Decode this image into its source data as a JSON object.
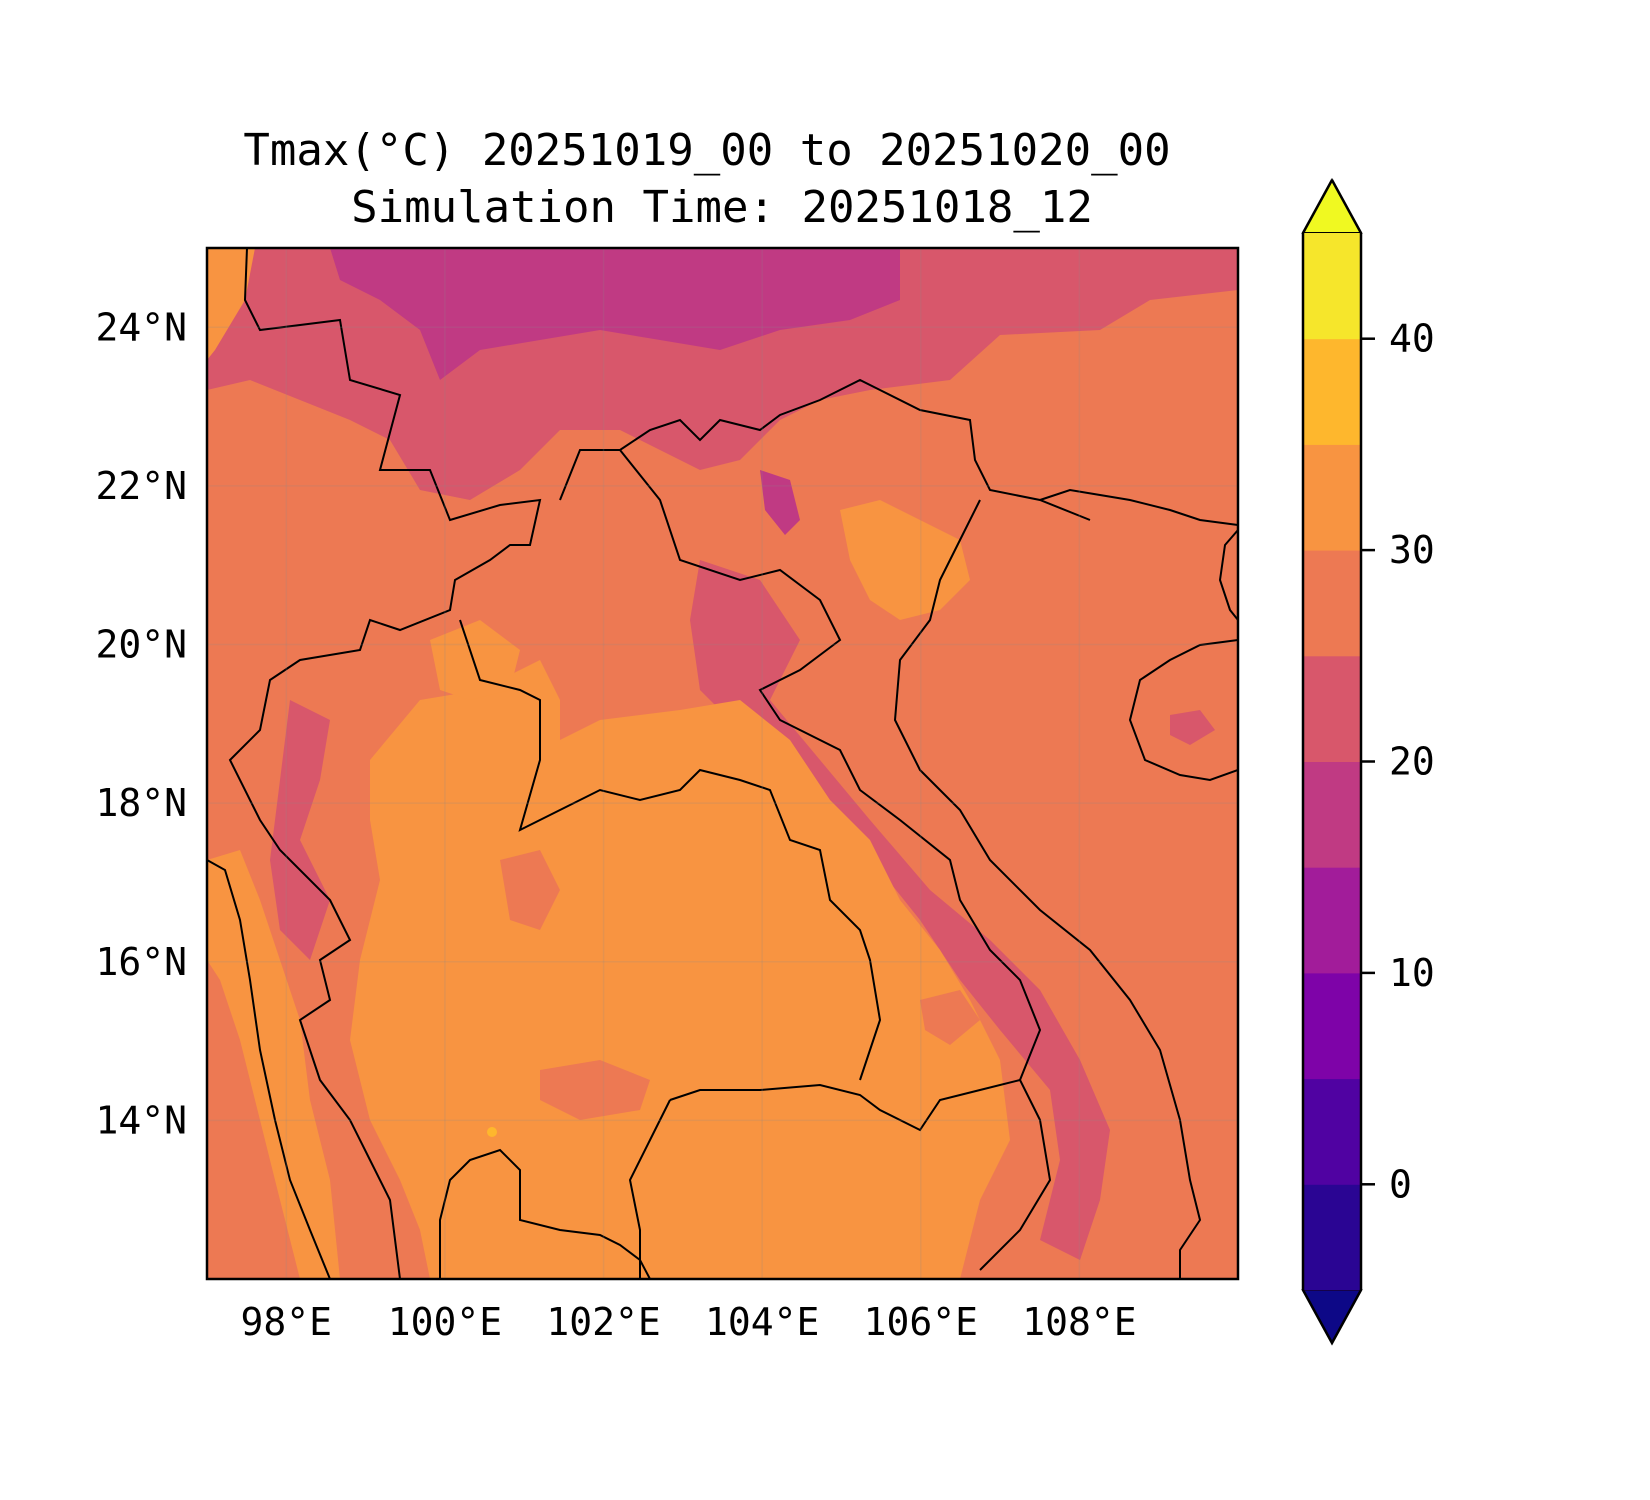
{
  "chart_data": {
    "type": "heatmap",
    "title_line1": "Tmax(°C) 20251019_00 to 20251020_00",
    "title_line2": "Simulation Time: 20251018_12",
    "x_ticks": [
      {
        "value": 98,
        "label": "98°E"
      },
      {
        "value": 100,
        "label": "100°E"
      },
      {
        "value": 102,
        "label": "102°E"
      },
      {
        "value": 104,
        "label": "104°E"
      },
      {
        "value": 106,
        "label": "106°E"
      },
      {
        "value": 108,
        "label": "108°E"
      }
    ],
    "y_ticks": [
      {
        "value": 24,
        "label": "24°N"
      },
      {
        "value": 22,
        "label": "22°N"
      },
      {
        "value": 20,
        "label": "20°N"
      },
      {
        "value": 18,
        "label": "18°N"
      },
      {
        "value": 16,
        "label": "16°N"
      },
      {
        "value": 14,
        "label": "14°N"
      }
    ],
    "xlim": [
      97,
      110
    ],
    "ylim": [
      12,
      25
    ],
    "grid": true,
    "colorbar": {
      "levels": [
        -5,
        0,
        5,
        10,
        15,
        20,
        25,
        30,
        35,
        40,
        45
      ],
      "extend": "both",
      "ticks": [
        {
          "value": 0,
          "label": "0"
        },
        {
          "value": 10,
          "label": "10"
        },
        {
          "value": 20,
          "label": "20"
        },
        {
          "value": 30,
          "label": "30"
        },
        {
          "value": 40,
          "label": "40"
        }
      ],
      "under_color": "#0d0887",
      "over_color": "#f0f921",
      "colors": [
        "#2a0593",
        "#5002a2",
        "#7e03a8",
        "#a21c9a",
        "#c03a83",
        "#d8576b",
        "#ed7953",
        "#f89441",
        "#feb72d",
        "#f6e62b"
      ]
    },
    "regions": [
      {
        "value_band": [
          25,
          30
        ],
        "description": "Tmax 25-30 across most of domain"
      },
      {
        "value_band": [
          30,
          35
        ],
        "description": "Tmax 30-35 over central lowlands"
      },
      {
        "value_band": [
          20,
          25
        ],
        "description": "Tmax 20-25 over northern highlands"
      },
      {
        "value_band": [
          15,
          20
        ],
        "description": "Tmax 15-20 over highest terrain"
      }
    ]
  }
}
